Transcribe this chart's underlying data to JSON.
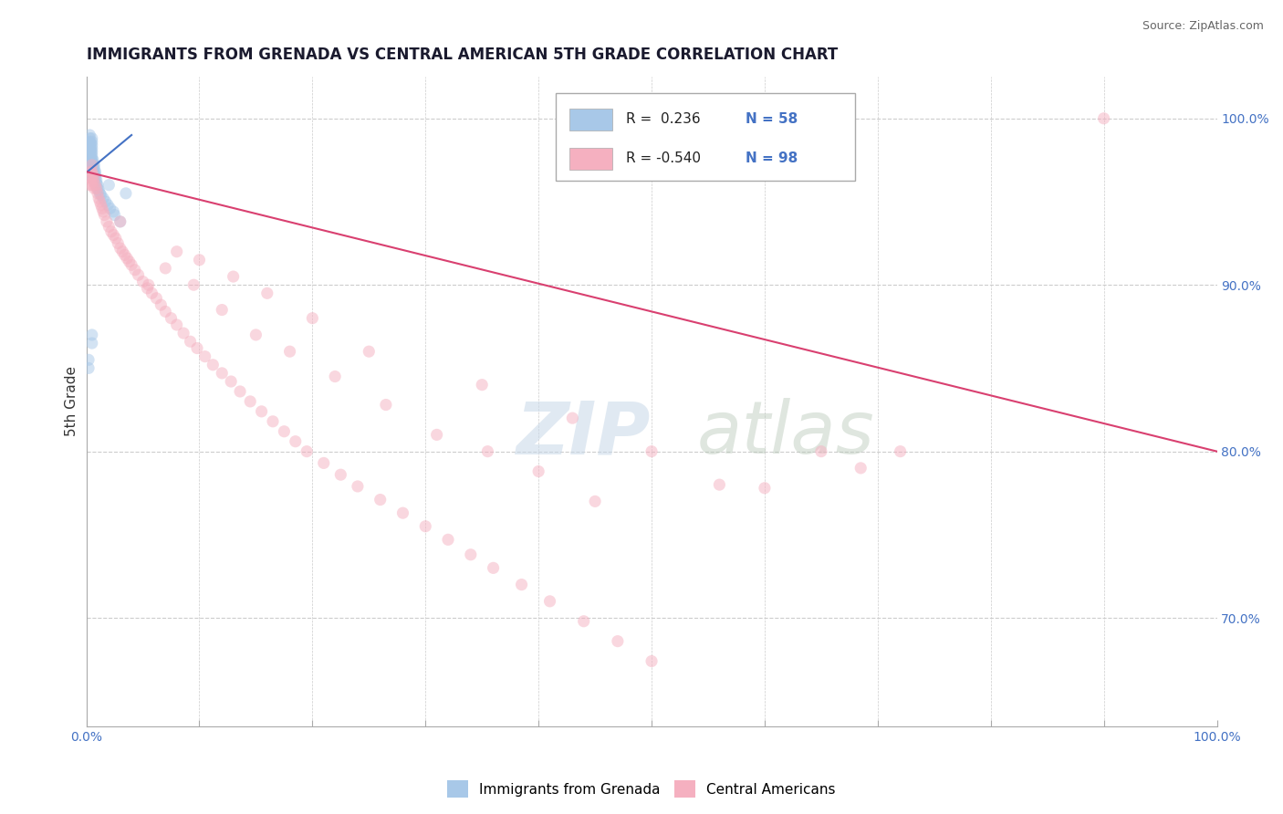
{
  "title": "IMMIGRANTS FROM GRENADA VS CENTRAL AMERICAN 5TH GRADE CORRELATION CHART",
  "source": "Source: ZipAtlas.com",
  "ylabel": "5th Grade",
  "watermark_zip": "ZIP",
  "watermark_atlas": "atlas",
  "legend_entries": [
    {
      "label": "Immigrants from Grenada",
      "color": "#a8c8e8",
      "R": 0.236,
      "N": 58
    },
    {
      "label": "Central Americans",
      "color": "#f5b0c0",
      "R": -0.54,
      "N": 98
    }
  ],
  "xmin": 0.0,
  "xmax": 1.0,
  "ymin": 0.635,
  "ymax": 1.025,
  "right_yticks": [
    0.7,
    0.8,
    0.9,
    1.0
  ],
  "right_yticklabels": [
    "70.0%",
    "80.0%",
    "90.0%",
    "100.0%"
  ],
  "blue_scatter_x": [
    0.002,
    0.002,
    0.003,
    0.003,
    0.003,
    0.003,
    0.003,
    0.004,
    0.004,
    0.004,
    0.004,
    0.004,
    0.004,
    0.004,
    0.004,
    0.005,
    0.005,
    0.005,
    0.005,
    0.005,
    0.005,
    0.005,
    0.005,
    0.005,
    0.005,
    0.005,
    0.005,
    0.005,
    0.006,
    0.006,
    0.006,
    0.006,
    0.006,
    0.007,
    0.007,
    0.007,
    0.007,
    0.008,
    0.008,
    0.008,
    0.009,
    0.009,
    0.01,
    0.01,
    0.011,
    0.012,
    0.013,
    0.015,
    0.017,
    0.019,
    0.021,
    0.024,
    0.025,
    0.03,
    0.005,
    0.005,
    0.02,
    0.035,
    0.002,
    0.002
  ],
  "blue_scatter_y": [
    0.985,
    0.982,
    0.99,
    0.988,
    0.986,
    0.984,
    0.982,
    0.985,
    0.982,
    0.98,
    0.978,
    0.976,
    0.974,
    0.972,
    0.97,
    0.988,
    0.986,
    0.984,
    0.982,
    0.98,
    0.978,
    0.976,
    0.974,
    0.972,
    0.97,
    0.968,
    0.966,
    0.964,
    0.975,
    0.973,
    0.971,
    0.969,
    0.967,
    0.972,
    0.97,
    0.968,
    0.966,
    0.968,
    0.966,
    0.964,
    0.963,
    0.961,
    0.96,
    0.958,
    0.957,
    0.955,
    0.954,
    0.952,
    0.95,
    0.948,
    0.946,
    0.944,
    0.942,
    0.938,
    0.87,
    0.865,
    0.96,
    0.955,
    0.855,
    0.85
  ],
  "pink_scatter_x": [
    0.003,
    0.004,
    0.004,
    0.005,
    0.005,
    0.005,
    0.005,
    0.006,
    0.006,
    0.007,
    0.007,
    0.008,
    0.009,
    0.01,
    0.011,
    0.012,
    0.013,
    0.014,
    0.015,
    0.016,
    0.018,
    0.02,
    0.022,
    0.024,
    0.026,
    0.028,
    0.03,
    0.032,
    0.034,
    0.036,
    0.038,
    0.04,
    0.043,
    0.046,
    0.05,
    0.054,
    0.058,
    0.062,
    0.066,
    0.07,
    0.075,
    0.08,
    0.086,
    0.092,
    0.098,
    0.105,
    0.112,
    0.12,
    0.128,
    0.136,
    0.145,
    0.155,
    0.165,
    0.175,
    0.185,
    0.195,
    0.21,
    0.225,
    0.24,
    0.26,
    0.28,
    0.3,
    0.32,
    0.34,
    0.36,
    0.385,
    0.41,
    0.44,
    0.47,
    0.5,
    0.07,
    0.095,
    0.12,
    0.15,
    0.18,
    0.22,
    0.265,
    0.31,
    0.355,
    0.4,
    0.45,
    0.35,
    0.43,
    0.5,
    0.56,
    0.6,
    0.65,
    0.685,
    0.72,
    0.9,
    0.08,
    0.1,
    0.13,
    0.16,
    0.2,
    0.25,
    0.03,
    0.055
  ],
  "pink_scatter_y": [
    0.96,
    0.968,
    0.964,
    0.972,
    0.968,
    0.964,
    0.96,
    0.966,
    0.962,
    0.964,
    0.958,
    0.96,
    0.958,
    0.955,
    0.952,
    0.95,
    0.948,
    0.946,
    0.944,
    0.942,
    0.938,
    0.935,
    0.932,
    0.93,
    0.928,
    0.925,
    0.922,
    0.92,
    0.918,
    0.916,
    0.914,
    0.912,
    0.909,
    0.906,
    0.902,
    0.898,
    0.895,
    0.892,
    0.888,
    0.884,
    0.88,
    0.876,
    0.871,
    0.866,
    0.862,
    0.857,
    0.852,
    0.847,
    0.842,
    0.836,
    0.83,
    0.824,
    0.818,
    0.812,
    0.806,
    0.8,
    0.793,
    0.786,
    0.779,
    0.771,
    0.763,
    0.755,
    0.747,
    0.738,
    0.73,
    0.72,
    0.71,
    0.698,
    0.686,
    0.674,
    0.91,
    0.9,
    0.885,
    0.87,
    0.86,
    0.845,
    0.828,
    0.81,
    0.8,
    0.788,
    0.77,
    0.84,
    0.82,
    0.8,
    0.78,
    0.778,
    0.8,
    0.79,
    0.8,
    1.0,
    0.92,
    0.915,
    0.905,
    0.895,
    0.88,
    0.86,
    0.938,
    0.9
  ],
  "blue_line_x": [
    0.001,
    0.04
  ],
  "blue_line_y": [
    0.968,
    0.99
  ],
  "pink_line_x": [
    0.0,
    1.0
  ],
  "pink_line_y": [
    0.968,
    0.8
  ],
  "scatter_alpha": 0.5,
  "scatter_size": 90,
  "background_color": "#ffffff",
  "grid_color": "#cccccc",
  "title_color": "#1a1a2e",
  "source_color": "#666666",
  "ylabel_color": "#333333",
  "right_tick_color": "#4472c4",
  "blue_line_color": "#4472c4",
  "pink_line_color": "#d94070"
}
